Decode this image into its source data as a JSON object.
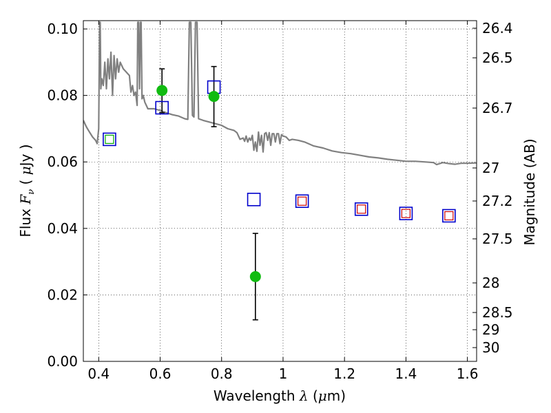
{
  "chart_data": {
    "type": "scatter",
    "xlabel": {
      "prefix": "Wavelength  ",
      "symbol": "λ",
      "unit_open": " (",
      "unit_mu": "μ",
      "unit_rest": "m)"
    },
    "ylabel": {
      "prefix": "Flux  ",
      "symbol": "F",
      "sub": "ν",
      "open": "  ( ",
      "mu": "μ",
      "rest": "Jy )"
    },
    "y2label": "Magnitude (AB)",
    "xlim": [
      0.35,
      1.63
    ],
    "ylim": [
      0.0,
      0.1025
    ],
    "grid": true,
    "xticks": [
      {
        "v": 0.4,
        "t": "0.4"
      },
      {
        "v": 0.6,
        "t": "0.6"
      },
      {
        "v": 0.8,
        "t": "0.8"
      },
      {
        "v": 1.0,
        "t": "1"
      },
      {
        "v": 1.2,
        "t": "1.2"
      },
      {
        "v": 1.4,
        "t": "1.4"
      },
      {
        "v": 1.6,
        "t": "1.6"
      }
    ],
    "yticks": [
      {
        "v": 0.0,
        "t": "0.00"
      },
      {
        "v": 0.02,
        "t": "0.02"
      },
      {
        "v": 0.04,
        "t": "0.04"
      },
      {
        "v": 0.06,
        "t": "0.06"
      },
      {
        "v": 0.08,
        "t": "0.08"
      },
      {
        "v": 0.1,
        "t": "0.10"
      }
    ],
    "y2ticks": [
      "26.4",
      "26.5",
      "26.7",
      "27",
      "27.2",
      "27.5",
      "28",
      "28.5",
      "29",
      "30"
    ],
    "sed_spectrum": {
      "name": "",
      "color": "#808080",
      "points": [
        [
          0.35,
          0.0725
        ],
        [
          0.36,
          0.0705
        ],
        [
          0.37,
          0.069
        ],
        [
          0.38,
          0.0675
        ],
        [
          0.39,
          0.0665
        ],
        [
          0.395,
          0.0655
        ],
        [
          0.4,
          0.07
        ],
        [
          0.403,
          0.102
        ],
        [
          0.405,
          0.102
        ],
        [
          0.407,
          0.082
        ],
        [
          0.41,
          0.085
        ],
        [
          0.415,
          0.083
        ],
        [
          0.42,
          0.09
        ],
        [
          0.425,
          0.082
        ],
        [
          0.43,
          0.091
        ],
        [
          0.435,
          0.085
        ],
        [
          0.44,
          0.093
        ],
        [
          0.445,
          0.08
        ],
        [
          0.45,
          0.092
        ],
        [
          0.455,
          0.085
        ],
        [
          0.46,
          0.091
        ],
        [
          0.465,
          0.087
        ],
        [
          0.47,
          0.09
        ],
        [
          0.48,
          0.088
        ],
        [
          0.49,
          0.087
        ],
        [
          0.5,
          0.086
        ],
        [
          0.505,
          0.081
        ],
        [
          0.51,
          0.083
        ],
        [
          0.515,
          0.08
        ],
        [
          0.52,
          0.081
        ],
        [
          0.525,
          0.077
        ],
        [
          0.527,
          0.102
        ],
        [
          0.53,
          0.102
        ],
        [
          0.533,
          0.082
        ],
        [
          0.536,
          0.102
        ],
        [
          0.538,
          0.102
        ],
        [
          0.541,
          0.079
        ],
        [
          0.545,
          0.08
        ],
        [
          0.55,
          0.078
        ],
        [
          0.56,
          0.076
        ],
        [
          0.58,
          0.076
        ],
        [
          0.6,
          0.0755
        ],
        [
          0.62,
          0.0748
        ],
        [
          0.64,
          0.0742
        ],
        [
          0.66,
          0.0738
        ],
        [
          0.68,
          0.073
        ],
        [
          0.69,
          0.0728
        ],
        [
          0.695,
          0.102
        ],
        [
          0.7,
          0.102
        ],
        [
          0.705,
          0.074
        ],
        [
          0.71,
          0.0735
        ],
        [
          0.715,
          0.102
        ],
        [
          0.72,
          0.102
        ],
        [
          0.725,
          0.073
        ],
        [
          0.74,
          0.0725
        ],
        [
          0.76,
          0.072
        ],
        [
          0.78,
          0.0715
        ],
        [
          0.8,
          0.071
        ],
        [
          0.82,
          0.07
        ],
        [
          0.84,
          0.0695
        ],
        [
          0.85,
          0.0688
        ],
        [
          0.86,
          0.0668
        ],
        [
          0.87,
          0.0672
        ],
        [
          0.875,
          0.0662
        ],
        [
          0.88,
          0.0678
        ],
        [
          0.885,
          0.066
        ],
        [
          0.89,
          0.0672
        ],
        [
          0.895,
          0.0665
        ],
        [
          0.9,
          0.068
        ],
        [
          0.905,
          0.0635
        ],
        [
          0.91,
          0.066
        ],
        [
          0.915,
          0.0632
        ],
        [
          0.92,
          0.069
        ],
        [
          0.925,
          0.065
        ],
        [
          0.93,
          0.068
        ],
        [
          0.935,
          0.063
        ],
        [
          0.94,
          0.0685
        ],
        [
          0.945,
          0.0688
        ],
        [
          0.95,
          0.0665
        ],
        [
          0.955,
          0.0688
        ],
        [
          0.96,
          0.065
        ],
        [
          0.965,
          0.0685
        ],
        [
          0.97,
          0.0685
        ],
        [
          0.975,
          0.066
        ],
        [
          0.98,
          0.0685
        ],
        [
          0.985,
          0.0685
        ],
        [
          0.99,
          0.0655
        ],
        [
          0.995,
          0.0682
        ],
        [
          1.0,
          0.0678
        ],
        [
          1.01,
          0.0675
        ],
        [
          1.02,
          0.0665
        ],
        [
          1.03,
          0.0668
        ],
        [
          1.05,
          0.0665
        ],
        [
          1.07,
          0.066
        ],
        [
          1.1,
          0.0648
        ],
        [
          1.13,
          0.0642
        ],
        [
          1.16,
          0.0633
        ],
        [
          1.19,
          0.0628
        ],
        [
          1.22,
          0.0625
        ],
        [
          1.25,
          0.062
        ],
        [
          1.28,
          0.0615
        ],
        [
          1.31,
          0.0612
        ],
        [
          1.34,
          0.0608
        ],
        [
          1.37,
          0.0605
        ],
        [
          1.4,
          0.0602
        ],
        [
          1.43,
          0.0602
        ],
        [
          1.46,
          0.06
        ],
        [
          1.49,
          0.0598
        ],
        [
          1.5,
          0.0592
        ],
        [
          1.52,
          0.0598
        ],
        [
          1.54,
          0.0595
        ],
        [
          1.56,
          0.0593
        ],
        [
          1.58,
          0.0596
        ],
        [
          1.6,
          0.0596
        ],
        [
          1.63,
          0.0597
        ]
      ]
    },
    "model_photometry": {
      "name": "",
      "color": "#0000cc",
      "points": [
        {
          "x": 0.435,
          "y": 0.0668
        },
        {
          "x": 0.606,
          "y": 0.0763
        },
        {
          "x": 0.775,
          "y": 0.0825
        },
        {
          "x": 0.905,
          "y": 0.0487
        },
        {
          "x": 1.062,
          "y": 0.0482
        },
        {
          "x": 1.255,
          "y": 0.0458
        },
        {
          "x": 1.4,
          "y": 0.0445
        },
        {
          "x": 1.54,
          "y": 0.0438
        }
      ]
    },
    "inner_markers": [
      {
        "x": 0.435,
        "y": 0.0668,
        "color": "#00aa00"
      },
      {
        "x": 1.062,
        "y": 0.0482,
        "color": "#cc0000"
      },
      {
        "x": 1.255,
        "y": 0.0458,
        "color": "#cc0000"
      },
      {
        "x": 1.4,
        "y": 0.0445,
        "color": "#cc0000"
      },
      {
        "x": 1.54,
        "y": 0.0438,
        "color": "#cc0000"
      }
    ],
    "observed": {
      "name": "",
      "color": "#11bb11",
      "points": [
        {
          "x": 0.606,
          "y": 0.0815,
          "err_lo": 0.0748,
          "err_hi": 0.088
        },
        {
          "x": 0.775,
          "y": 0.0797,
          "err_lo": 0.0706,
          "err_hi": 0.0887
        },
        {
          "x": 0.91,
          "y": 0.0255,
          "err_lo": 0.0125,
          "err_hi": 0.0385
        }
      ]
    }
  }
}
